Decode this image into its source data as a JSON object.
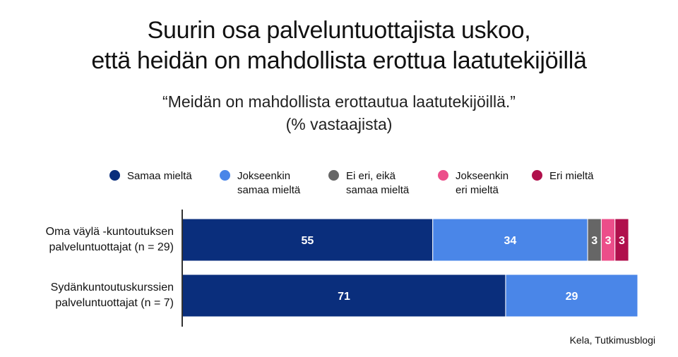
{
  "header": {
    "title_line1": "Suurin osa palveluntuottajista uskoo,",
    "title_line2": "että heidän on mahdollista erottua laatutekijöillä",
    "subtitle_line1": "“Meidän on mahdollista erottautua laatutekijöillä.”",
    "subtitle_line2": "(% vastaajista)"
  },
  "source": "Kela, Tutkimusblogi",
  "chart_data": {
    "type": "bar",
    "orientation": "horizontal",
    "stacked": true,
    "xlim": [
      0,
      100
    ],
    "legend_position": "top",
    "categories": [
      "Oma väylä -kuntoutuksen\npalveluntuottajat (n = 29)",
      "Sydänkuntoutuskurssien\npalveluntuottajat (n = 7)"
    ],
    "series": [
      {
        "name": "Samaa mieltä",
        "color": "#0a2e7c",
        "values": [
          55,
          71
        ]
      },
      {
        "name": "Jokseenkin\nsamaa mieltä",
        "color": "#4a86e8",
        "values": [
          34,
          29
        ]
      },
      {
        "name": "Ei eri, eikä\nsamaa mieltä",
        "color": "#666666",
        "values": [
          3,
          0
        ]
      },
      {
        "name": "Jokseenkin\neri mieltä",
        "color": "#ec4e8a",
        "values": [
          3,
          0
        ]
      },
      {
        "name": "Eri mieltä",
        "color": "#b0104c",
        "values": [
          3,
          0
        ]
      }
    ]
  }
}
